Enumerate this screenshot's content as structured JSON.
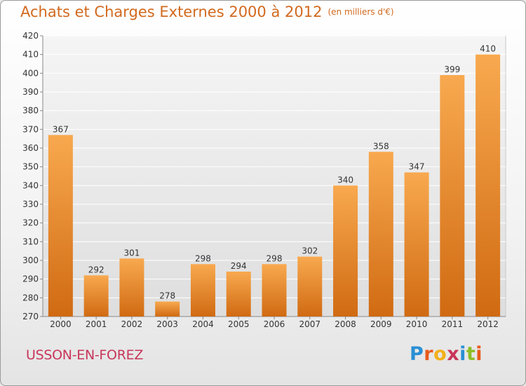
{
  "header": {
    "title": "Achats et Charges Externes 2000 à 2012",
    "subtitle": "(en milliers d'€)"
  },
  "footer": {
    "city": "USSON-EN-FOREZ",
    "brand": {
      "letters": [
        "P",
        "r",
        "o",
        "x",
        "i",
        "t",
        "i"
      ],
      "colors": [
        "#2a8fd4",
        "#e85a1c",
        "#f3b01b",
        "#c8365a",
        "#2a8fd4",
        "#8cbf26",
        "#e85a1c"
      ]
    }
  },
  "colors": {
    "bar_top": "#f8a94f",
    "bar_bottom": "#d06a12",
    "text_accent": "#d2691e",
    "city": "#c8365a"
  },
  "chart_data": {
    "type": "bar",
    "title": "Achats et Charges Externes 2000 à 2012",
    "subtitle": "(en milliers d'€)",
    "categories": [
      "2000",
      "2001",
      "2002",
      "2003",
      "2004",
      "2005",
      "2006",
      "2007",
      "2008",
      "2009",
      "2010",
      "2011",
      "2012"
    ],
    "values": [
      367,
      292,
      301,
      278,
      298,
      294,
      298,
      302,
      340,
      358,
      347,
      399,
      410
    ],
    "ylim": [
      270,
      420
    ],
    "yticks": [
      270,
      280,
      290,
      300,
      310,
      320,
      330,
      340,
      350,
      360,
      370,
      380,
      390,
      400,
      410,
      420
    ],
    "grid": true,
    "legend": "none"
  }
}
